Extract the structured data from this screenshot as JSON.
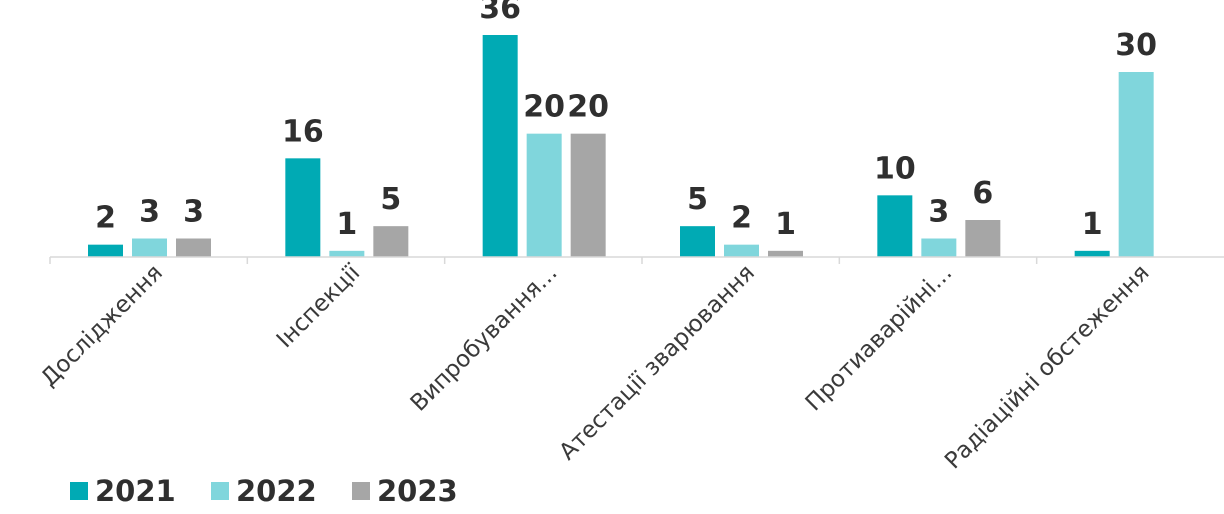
{
  "chart_data": {
    "type": "bar",
    "categories": [
      "Дослідження",
      "Інспекції",
      "Випробування...",
      "Атестації зварювання",
      "Протиаварійні...",
      "Радіаційні обстеження"
    ],
    "series": [
      {
        "name": "2021",
        "color": "#00aab4",
        "values": [
          2,
          16,
          36,
          5,
          10,
          1
        ]
      },
      {
        "name": "2022",
        "color": "#80d6dc",
        "values": [
          3,
          1,
          20,
          2,
          3,
          30
        ]
      },
      {
        "name": "2023",
        "color": "#a6a6a6",
        "values": [
          3,
          5,
          20,
          1,
          6,
          null
        ]
      }
    ],
    "title": "",
    "xlabel": "",
    "ylabel": "",
    "ylim": [
      0,
      36
    ],
    "legend_position": "bottom-left",
    "grid": false
  }
}
